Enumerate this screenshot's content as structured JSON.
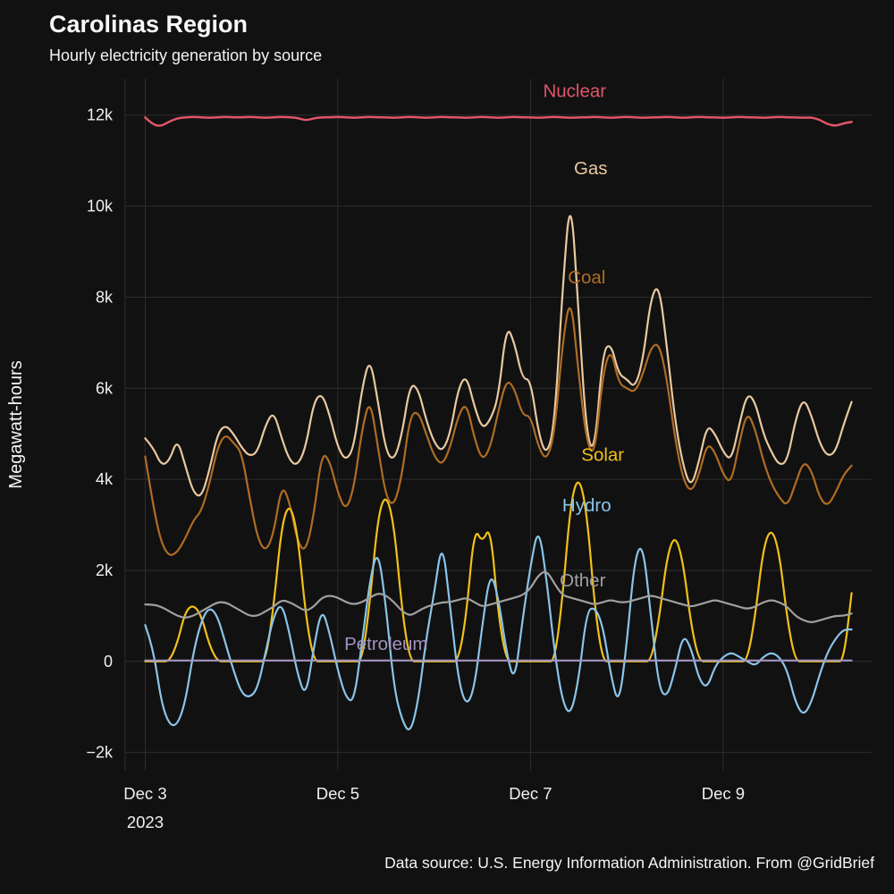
{
  "header": {
    "title": "Carolinas Region",
    "subtitle": "Hourly electricity generation by source"
  },
  "footer": {
    "text": "Data source: U.S. Energy Information Administration. From @GridBrief"
  },
  "colors": {
    "background": "#111111",
    "grid": "#2e2e2e",
    "tick_text": "#f0f0f0",
    "title_text": "#f7f7f7"
  },
  "chart_data": {
    "type": "line",
    "title": "Carolinas Region",
    "subtitle": "Hourly electricity generation by source",
    "xlabel": "",
    "ylabel": "Megawatt-hours",
    "x_unit": "hours since Dec 3 2023 00:00",
    "x_step_hours": 2,
    "xlim": [
      -5,
      181
    ],
    "ylim": [
      -2400,
      12800
    ],
    "grid": true,
    "legend": "inline-annotations",
    "grid_color": "#2e2e2e",
    "tick_color": "#f0f0f0",
    "yticks": [
      {
        "v": -2000,
        "label": "−2k"
      },
      {
        "v": 0,
        "label": "0"
      },
      {
        "v": 2000,
        "label": "2k"
      },
      {
        "v": 4000,
        "label": "4k"
      },
      {
        "v": 6000,
        "label": "6k"
      },
      {
        "v": 8000,
        "label": "8k"
      },
      {
        "v": 10000,
        "label": "10k"
      },
      {
        "v": 12000,
        "label": "12k"
      }
    ],
    "xticks": [
      {
        "h": 0,
        "label": "Dec 3",
        "sub": "2023"
      },
      {
        "h": 48,
        "label": "Dec 5",
        "sub": ""
      },
      {
        "h": 96,
        "label": "Dec 7",
        "sub": ""
      },
      {
        "h": 144,
        "label": "Dec 9",
        "sub": ""
      }
    ],
    "series": [
      {
        "name": "Nuclear",
        "color": "#e0556a",
        "line_width": 2.5,
        "label_at": {
          "h": 107,
          "v": 12400
        },
        "values": [
          11950,
          11780,
          11760,
          11860,
          11930,
          11950,
          11960,
          11950,
          11940,
          11950,
          11960,
          11950,
          11950,
          11960,
          11950,
          11940,
          11950,
          11960,
          11950,
          11940,
          11880,
          11930,
          11950,
          11950,
          11960,
          11950,
          11940,
          11950,
          11960,
          11950,
          11950,
          11940,
          11950,
          11960,
          11950,
          11940,
          11950,
          11960,
          11950,
          11950,
          11940,
          11950,
          11960,
          11950,
          11940,
          11950,
          11960,
          11950,
          11950,
          11940,
          11950,
          11960,
          11950,
          11940,
          11950,
          11950,
          11960,
          11950,
          11940,
          11950,
          11960,
          11950,
          11940,
          11950,
          11950,
          11960,
          11950,
          11940,
          11950,
          11960,
          11950,
          11950,
          11940,
          11950,
          11960,
          11950,
          11950,
          11940,
          11950,
          11960,
          11950,
          11950,
          11940,
          11950,
          11900,
          11800,
          11760,
          11820,
          11850
        ]
      },
      {
        "name": "Gas",
        "color": "#e9c9a0",
        "line_width": 2.2,
        "label_at": {
          "h": 111,
          "v": 10700
        },
        "values": [
          4900,
          4700,
          4300,
          4400,
          4900,
          4300,
          3700,
          3600,
          4200,
          5000,
          5200,
          5000,
          4700,
          4500,
          4600,
          5200,
          5500,
          4900,
          4400,
          4300,
          4700,
          5700,
          5900,
          5400,
          4700,
          4400,
          4700,
          6000,
          6700,
          5700,
          4600,
          4400,
          5000,
          6100,
          6000,
          5300,
          4800,
          4600,
          5000,
          6000,
          6300,
          5600,
          5100,
          5300,
          5800,
          7400,
          7000,
          6200,
          6200,
          5000,
          4500,
          5200,
          8200,
          10400,
          7600,
          4900,
          4600,
          6800,
          7000,
          6300,
          6200,
          6000,
          6600,
          8000,
          8300,
          6900,
          5300,
          4300,
          3800,
          4400,
          5200,
          5000,
          4600,
          4400,
          5200,
          5900,
          5700,
          5000,
          4600,
          4300,
          4400,
          5300,
          5800,
          5400,
          4800,
          4500,
          4600,
          5200,
          5700
        ]
      },
      {
        "name": "Coal",
        "color": "#b06c24",
        "line_width": 2.2,
        "label_at": {
          "h": 110,
          "v": 8300
        },
        "values": [
          4500,
          3400,
          2600,
          2300,
          2400,
          2700,
          3100,
          3300,
          3900,
          4700,
          5000,
          4800,
          4600,
          3600,
          2700,
          2400,
          2800,
          3900,
          3500,
          2600,
          2400,
          3200,
          4600,
          4400,
          3700,
          3300,
          3800,
          5100,
          5800,
          4700,
          3600,
          3400,
          4100,
          5400,
          5500,
          5000,
          4500,
          4300,
          4700,
          5400,
          5700,
          4900,
          4400,
          4700,
          5500,
          6200,
          6000,
          5400,
          5400,
          4700,
          4400,
          5000,
          7000,
          8100,
          6300,
          4800,
          4500,
          6300,
          6900,
          6100,
          6000,
          5900,
          6300,
          6900,
          7000,
          6200,
          4900,
          4000,
          3700,
          4100,
          4800,
          4600,
          4100,
          3900,
          4800,
          5500,
          5100,
          4400,
          3900,
          3600,
          3400,
          3900,
          4400,
          4200,
          3600,
          3400,
          3700,
          4100,
          4300
        ]
      },
      {
        "name": "Solar",
        "color": "#f2c018",
        "line_width": 2.2,
        "label_at": {
          "h": 114,
          "v": 4400
        },
        "values": [
          0,
          0,
          0,
          0,
          400,
          1100,
          1250,
          1000,
          350,
          0,
          0,
          0,
          0,
          0,
          0,
          0,
          1200,
          3000,
          3500,
          2800,
          1000,
          0,
          0,
          0,
          0,
          0,
          0,
          0,
          1300,
          3200,
          3700,
          3000,
          1100,
          0,
          0,
          0,
          0,
          0,
          0,
          0,
          1000,
          2950,
          2600,
          3000,
          1000,
          0,
          0,
          0,
          0,
          0,
          0,
          0,
          1400,
          3500,
          4100,
          3300,
          1200,
          0,
          0,
          0,
          0,
          0,
          0,
          0,
          900,
          2300,
          2800,
          2200,
          800,
          0,
          0,
          0,
          0,
          0,
          0,
          0,
          1000,
          2500,
          2950,
          2400,
          900,
          0,
          0,
          0,
          0,
          0,
          0,
          0,
          1500
        ]
      },
      {
        "name": "Hydro",
        "color": "#8ac4ea",
        "line_width": 2.2,
        "label_at": {
          "h": 110,
          "v": 3300
        },
        "values": [
          800,
          300,
          -900,
          -1400,
          -1400,
          -900,
          200,
          900,
          1200,
          1000,
          400,
          -200,
          -700,
          -800,
          -600,
          200,
          1000,
          1300,
          600,
          -300,
          -800,
          300,
          1200,
          600,
          -200,
          -800,
          -900,
          400,
          1800,
          2500,
          1200,
          -600,
          -1300,
          -1600,
          -900,
          500,
          1500,
          2700,
          1200,
          -400,
          -1000,
          -600,
          800,
          2000,
          1400,
          200,
          -500,
          900,
          2100,
          3000,
          1800,
          200,
          -900,
          -1200,
          -400,
          1100,
          1200,
          800,
          -300,
          -1000,
          400,
          2300,
          2600,
          1000,
          -600,
          -800,
          -200,
          600,
          300,
          -400,
          -600,
          -100,
          100,
          200,
          100,
          0,
          -100,
          100,
          200,
          100,
          -200,
          -900,
          -1200,
          -900,
          -300,
          200,
          500,
          700,
          700
        ]
      },
      {
        "name": "Other",
        "color": "#a0a0a0",
        "line_width": 2.2,
        "label_at": {
          "h": 109,
          "v": 1650
        },
        "values": [
          1250,
          1250,
          1200,
          1100,
          1000,
          950,
          1000,
          1100,
          1200,
          1300,
          1300,
          1200,
          1100,
          1000,
          1000,
          1100,
          1200,
          1350,
          1300,
          1200,
          1100,
          1200,
          1400,
          1450,
          1400,
          1300,
          1250,
          1300,
          1400,
          1500,
          1450,
          1300,
          1100,
          1000,
          1100,
          1200,
          1250,
          1300,
          1300,
          1350,
          1400,
          1300,
          1200,
          1250,
          1300,
          1350,
          1400,
          1450,
          1600,
          1900,
          2000,
          1700,
          1450,
          1400,
          1350,
          1300,
          1250,
          1300,
          1350,
          1300,
          1300,
          1350,
          1400,
          1450,
          1400,
          1350,
          1300,
          1250,
          1200,
          1250,
          1300,
          1350,
          1300,
          1250,
          1200,
          1150,
          1200,
          1300,
          1350,
          1300,
          1200,
          1000,
          900,
          850,
          900,
          950,
          1000,
          1000,
          1050
        ]
      },
      {
        "name": "Petroleum",
        "color": "#a394c1",
        "line_width": 2.2,
        "label_at": {
          "h": 60,
          "v": 250
        },
        "values": [
          20,
          20,
          20,
          20,
          20,
          20,
          20,
          20,
          20,
          20,
          20,
          20,
          20,
          20,
          20,
          20,
          20,
          20,
          20,
          20,
          20,
          20,
          20,
          20,
          20,
          20,
          20,
          20,
          20,
          20,
          20,
          20,
          20,
          20,
          20,
          20,
          20,
          20,
          20,
          20,
          20,
          20,
          20,
          20,
          20,
          20,
          20,
          20,
          20,
          20,
          20,
          20,
          20,
          20,
          20,
          20,
          20,
          20,
          20,
          20,
          20,
          20,
          20,
          20,
          20,
          20,
          20,
          20,
          20,
          20,
          20,
          20,
          20,
          20,
          20,
          20,
          20,
          20,
          20,
          20,
          20,
          20,
          20,
          20,
          20,
          20,
          20,
          20,
          20
        ]
      }
    ]
  }
}
